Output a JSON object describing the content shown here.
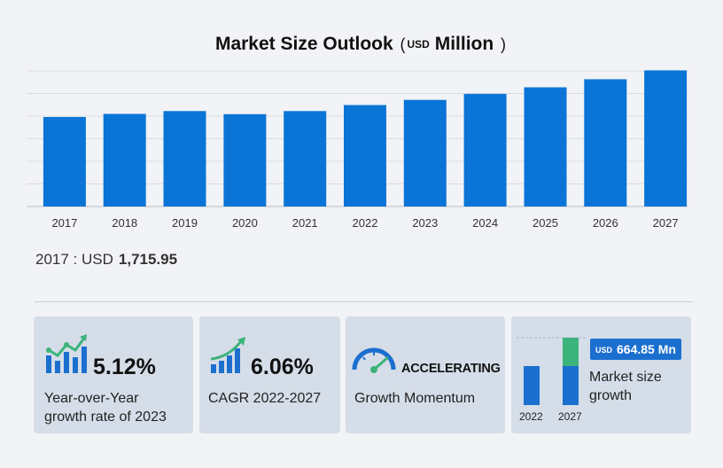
{
  "title": {
    "main": "Market Size Outlook",
    "unit_prefix": "USD",
    "unit": "Million"
  },
  "chart_data": {
    "type": "bar",
    "categories": [
      "2017",
      "2018",
      "2019",
      "2020",
      "2021",
      "2022",
      "2023",
      "2024",
      "2025",
      "2026",
      "2027"
    ],
    "values": [
      1715.95,
      1775,
      1830,
      1770,
      1830,
      1945,
      2045,
      2160,
      2285,
      2440,
      2610
    ],
    "ylim": [
      0,
      2600
    ],
    "grid": true,
    "color": "#0a75d6"
  },
  "base": {
    "label": "2017 : USD",
    "value": "1,715.95"
  },
  "cards": {
    "yoy": {
      "value": "5.12%",
      "label_line1": "Year-over-Year",
      "label_line2": "growth rate of 2023",
      "icon": "growth-bars-icon"
    },
    "cagr": {
      "value": "6.06%",
      "label": "CAGR 2022-2027",
      "icon": "rising-chart-icon"
    },
    "momentum": {
      "value": "ACCELERATING",
      "label": "Growth Momentum",
      "icon": "speedometer-icon"
    },
    "increment": {
      "badge_prefix": "USD",
      "badge_value": "664.85 Mn",
      "label_line1": "Market size",
      "label_line2": "growth",
      "year_start": "2022",
      "year_end": "2027",
      "bar_color": "#1b6fcf",
      "increment_color": "#3cb37a"
    }
  }
}
